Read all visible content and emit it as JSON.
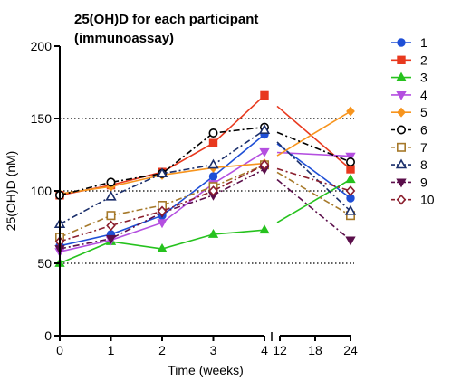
{
  "chart_data": {
    "type": "line",
    "title": [
      "25(OH)D for each participant",
      "(immunoassay)"
    ],
    "xlabel": "Time (weeks)",
    "ylabel": "25(OH)D (nM)",
    "ylim": [
      0,
      200
    ],
    "yticks": [
      0,
      50,
      100,
      150,
      200
    ],
    "xticks": [
      {
        "value": 0,
        "label": "0"
      },
      {
        "value": 1,
        "label": "1"
      },
      {
        "value": 2,
        "label": "2"
      },
      {
        "value": 3,
        "label": "3"
      },
      {
        "value": 4,
        "label": "4"
      },
      {
        "value": 12,
        "label": "12"
      },
      {
        "value": 18,
        "label": "18"
      },
      {
        "value": 24,
        "label": "24"
      }
    ],
    "x_axis_break": [
      4,
      12
    ],
    "reference_lines": [
      50,
      100,
      150
    ],
    "legend_position": "right",
    "series": [
      {
        "name": "1",
        "color": "#1f4fd6",
        "marker": "circle",
        "dash": "solid",
        "points": [
          [
            0,
            62
          ],
          [
            1,
            70
          ],
          [
            2,
            83
          ],
          [
            3,
            110
          ],
          [
            4,
            139
          ],
          [
            24,
            95
          ]
        ]
      },
      {
        "name": "2",
        "color": "#e8391e",
        "marker": "square",
        "dash": "solid",
        "points": [
          [
            0,
            97
          ],
          [
            1,
            104
          ],
          [
            2,
            113
          ],
          [
            3,
            133
          ],
          [
            4,
            166
          ],
          [
            24,
            115
          ]
        ]
      },
      {
        "name": "3",
        "color": "#26c21e",
        "marker": "triangle",
        "dash": "solid",
        "points": [
          [
            0,
            50
          ],
          [
            1,
            65
          ],
          [
            2,
            60
          ],
          [
            3,
            70
          ],
          [
            4,
            73
          ],
          [
            24,
            108
          ]
        ]
      },
      {
        "name": "4",
        "color": "#b44fe0",
        "marker": "triangle-down",
        "dash": "solid",
        "points": [
          [
            0,
            58
          ],
          [
            1,
            66
          ],
          [
            2,
            78
          ],
          [
            3,
            105
          ],
          [
            4,
            127
          ],
          [
            24,
            124
          ]
        ]
      },
      {
        "name": "5",
        "color": "#f7941d",
        "marker": "diamond",
        "dash": "solid",
        "points": [
          [
            0,
            98
          ],
          [
            1,
            103
          ],
          [
            2,
            111
          ],
          [
            3,
            116
          ],
          [
            4,
            119
          ],
          [
            24,
            155
          ]
        ]
      },
      {
        "name": "6",
        "color": "#000000",
        "marker": "circle-open",
        "dash": "dashdot",
        "points": [
          [
            0,
            97
          ],
          [
            1,
            106
          ],
          [
            2,
            112
          ],
          [
            3,
            140
          ],
          [
            4,
            144
          ],
          [
            24,
            120
          ]
        ]
      },
      {
        "name": "7",
        "color": "#a6792a",
        "marker": "square-open",
        "dash": "dashdot",
        "points": [
          [
            0,
            68
          ],
          [
            1,
            83
          ],
          [
            2,
            90
          ],
          [
            3,
            103
          ],
          [
            4,
            118
          ],
          [
            24,
            83
          ]
        ]
      },
      {
        "name": "8",
        "color": "#1b2f6b",
        "marker": "triangle-open",
        "dash": "dashdot",
        "points": [
          [
            0,
            77
          ],
          [
            1,
            96
          ],
          [
            2,
            112
          ],
          [
            3,
            118
          ],
          [
            4,
            142
          ],
          [
            24,
            86
          ]
        ]
      },
      {
        "name": "9",
        "color": "#5b0f4b",
        "marker": "triangle-down-filled",
        "dash": "dashdot",
        "points": [
          [
            0,
            60
          ],
          [
            1,
            67
          ],
          [
            2,
            85
          ],
          [
            3,
            97
          ],
          [
            4,
            115
          ],
          [
            24,
            66
          ]
        ]
      },
      {
        "name": "10",
        "color": "#8b1f2e",
        "marker": "diamond-open",
        "dash": "dashdot",
        "points": [
          [
            0,
            65
          ],
          [
            1,
            76
          ],
          [
            2,
            86
          ],
          [
            3,
            100
          ],
          [
            4,
            118
          ],
          [
            24,
            100
          ]
        ]
      }
    ]
  }
}
